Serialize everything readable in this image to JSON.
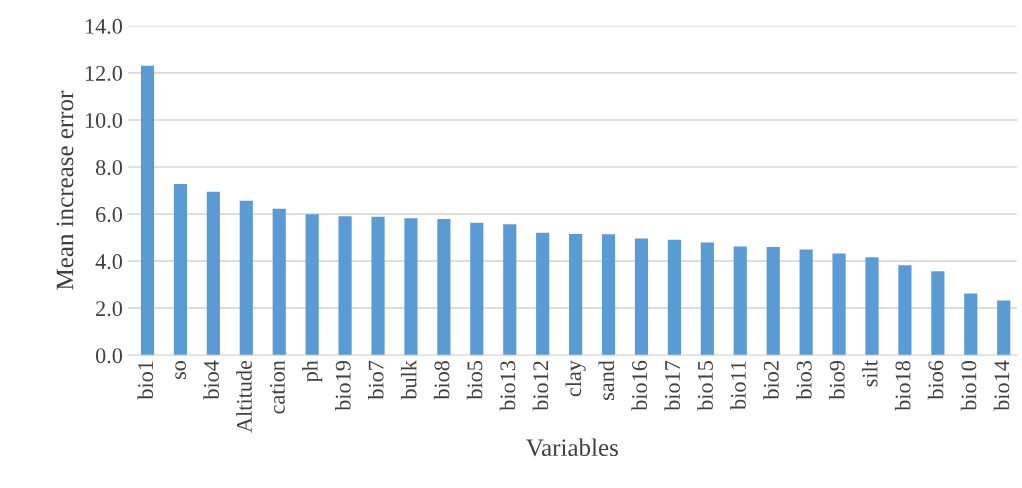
{
  "chart_data": {
    "type": "bar",
    "xlabel": "Variables",
    "ylabel": "Mean increase error",
    "categories": [
      "bio1",
      "so",
      "bio4",
      "Altitude",
      "cation",
      "ph",
      "bio19",
      "bio7",
      "bulk",
      "bio8",
      "bio5",
      "bio13",
      "bio12",
      "clay",
      "sand",
      "bio16",
      "bio17",
      "bio15",
      "bio11",
      "bio2",
      "bio3",
      "bio9",
      "silt",
      "bio18",
      "bio6",
      "bio10",
      "bio14"
    ],
    "values": [
      12.3,
      7.28,
      6.95,
      6.57,
      6.23,
      5.99,
      5.91,
      5.89,
      5.82,
      5.79,
      5.63,
      5.57,
      5.21,
      5.15,
      5.14,
      4.96,
      4.91,
      4.79,
      4.62,
      4.6,
      4.5,
      4.33,
      4.17,
      3.83,
      3.57,
      2.62,
      2.33
    ],
    "color": "#5b9bd5",
    "ylim": [
      0,
      14
    ],
    "yticks": [
      {
        "value": 0,
        "label": "0.0"
      },
      {
        "value": 2,
        "label": "2.0"
      },
      {
        "value": 4,
        "label": "4.0"
      },
      {
        "value": 6,
        "label": "6.0"
      },
      {
        "value": 8,
        "label": "8.0"
      },
      {
        "value": 10,
        "label": "10.0"
      },
      {
        "value": 12,
        "label": "12.0"
      },
      {
        "value": 14,
        "label": "14.0"
      }
    ],
    "grid": "y",
    "legend": false
  }
}
